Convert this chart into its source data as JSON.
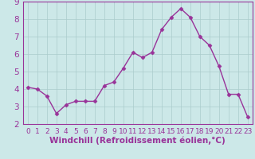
{
  "x": [
    0,
    1,
    2,
    3,
    4,
    5,
    6,
    7,
    8,
    9,
    10,
    11,
    12,
    13,
    14,
    15,
    16,
    17,
    18,
    19,
    20,
    21,
    22,
    23
  ],
  "y": [
    4.1,
    4.0,
    3.6,
    2.6,
    3.1,
    3.3,
    3.3,
    3.3,
    4.2,
    4.4,
    5.2,
    6.1,
    5.8,
    6.1,
    7.4,
    8.1,
    8.6,
    8.1,
    7.0,
    6.5,
    5.3,
    3.7,
    3.7,
    2.4
  ],
  "line_color": "#993399",
  "marker": "D",
  "marker_size": 2.5,
  "line_width": 1.0,
  "bg_color": "#cce8e8",
  "grid_color": "#aacccc",
  "xlabel": "Windchill (Refroidissement éolien,°C)",
  "xlabel_color": "#993399",
  "tick_color": "#993399",
  "axis_color": "#993399",
  "ylim": [
    2,
    9
  ],
  "xlim": [
    -0.5,
    23.5
  ],
  "yticks": [
    2,
    3,
    4,
    5,
    6,
    7,
    8,
    9
  ],
  "xticks": [
    0,
    1,
    2,
    3,
    4,
    5,
    6,
    7,
    8,
    9,
    10,
    11,
    12,
    13,
    14,
    15,
    16,
    17,
    18,
    19,
    20,
    21,
    22,
    23
  ],
  "font_size_tick": 6.5,
  "font_size_label": 7.5
}
